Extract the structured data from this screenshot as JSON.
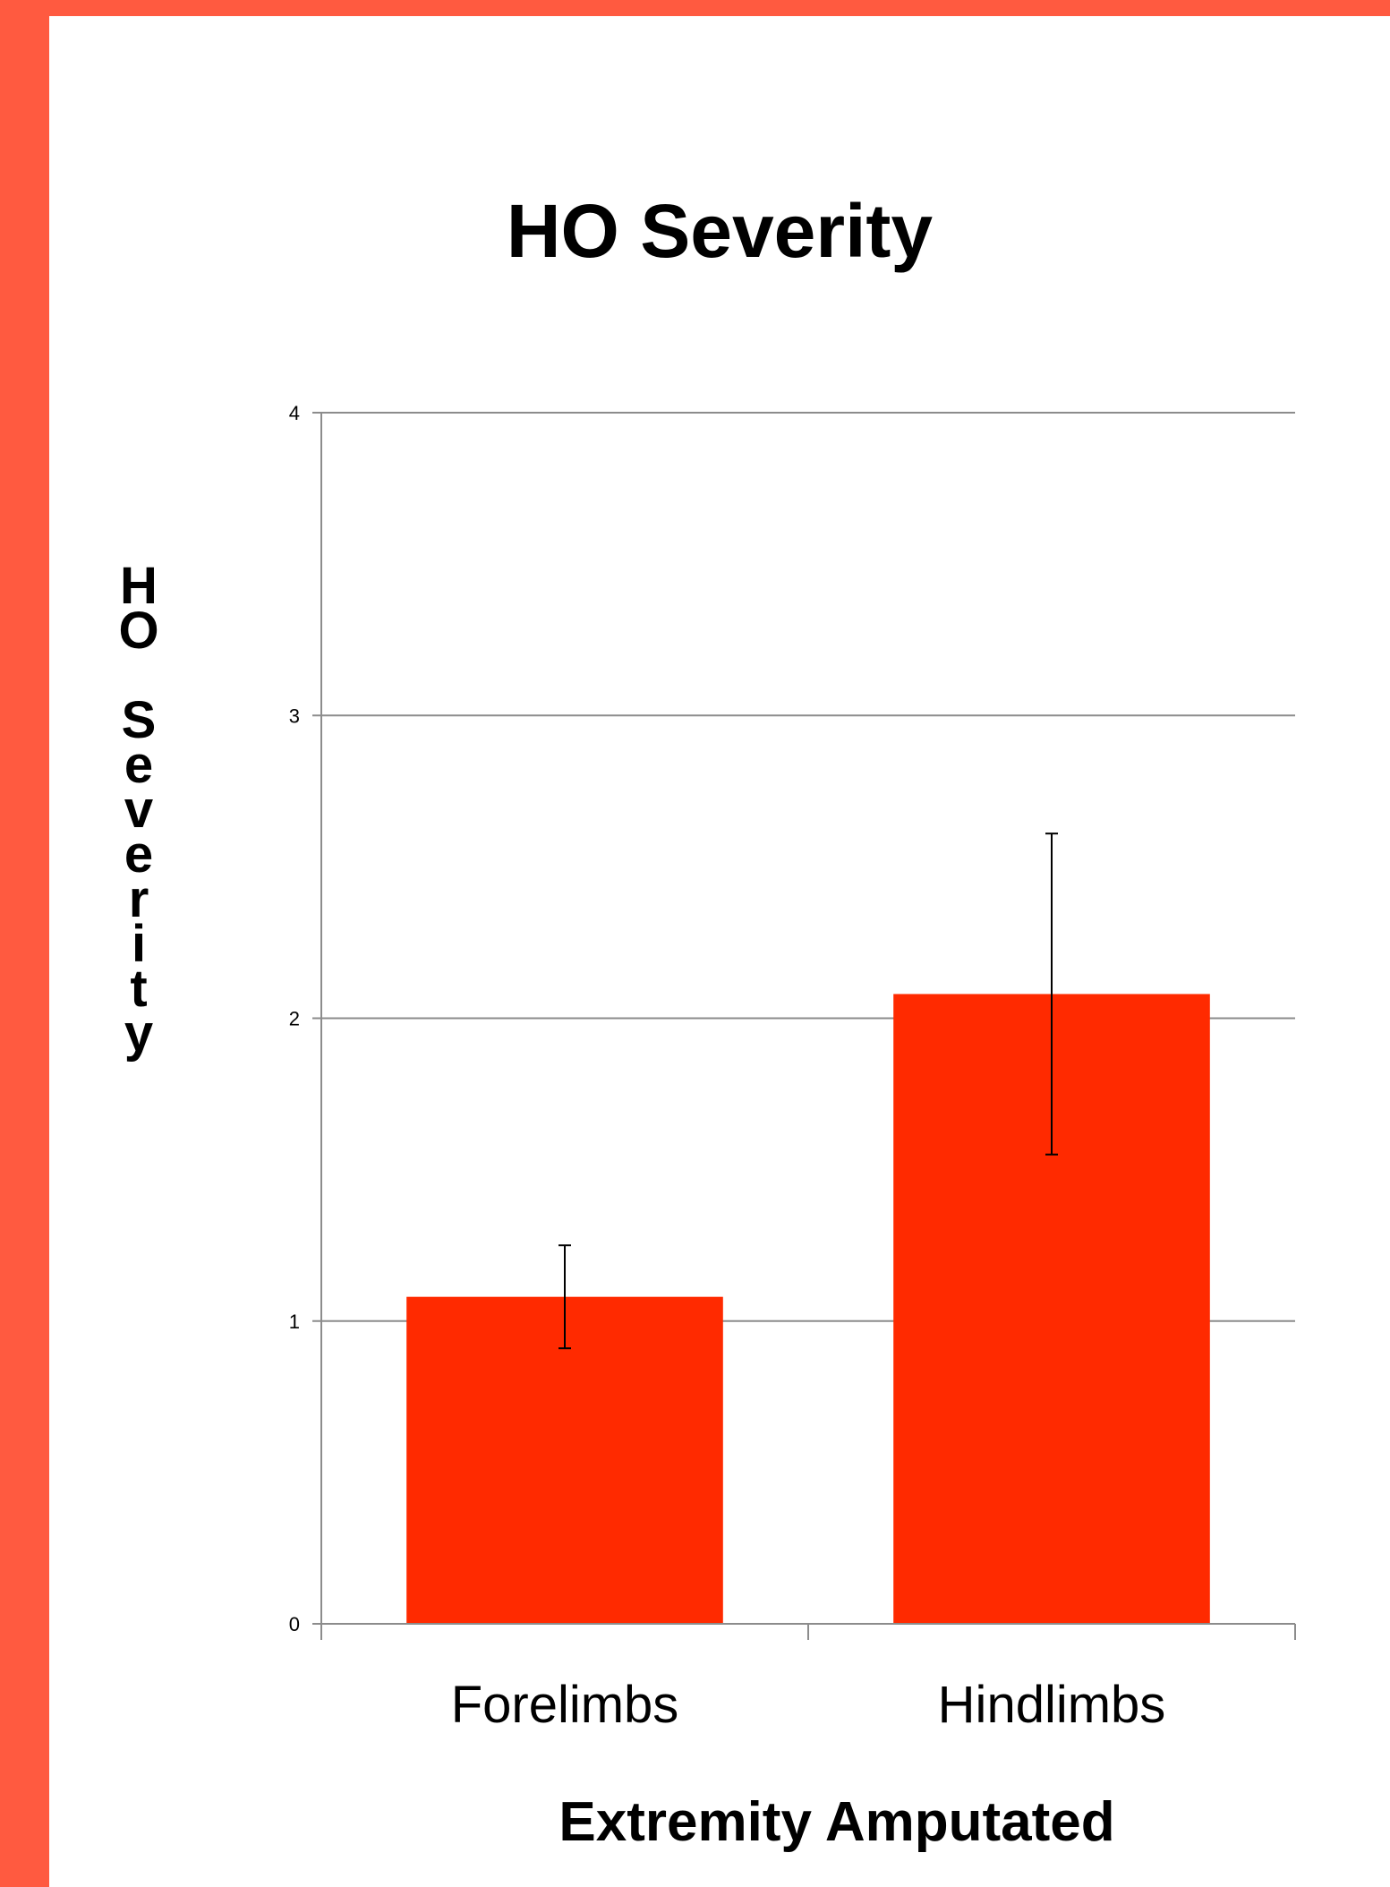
{
  "chart_data": {
    "type": "bar",
    "title": "HO Severity",
    "xlabel": "Extremity Amputated",
    "ylabel": "HO Severity",
    "categories": [
      "Forelimbs",
      "Hindlimbs"
    ],
    "values": [
      1.08,
      2.08
    ],
    "error_bars": [
      {
        "low": 0.91,
        "high": 1.25
      },
      {
        "low": 1.55,
        "high": 2.61
      }
    ],
    "ylim": [
      0,
      4
    ],
    "yticks": [
      0,
      1,
      2,
      3,
      4
    ],
    "grid": true,
    "bar_color": "#ff2a00",
    "gridline_color": "#8c8c8c"
  },
  "colors": {
    "background": "#ff5a40",
    "panel": "#ffffff"
  }
}
